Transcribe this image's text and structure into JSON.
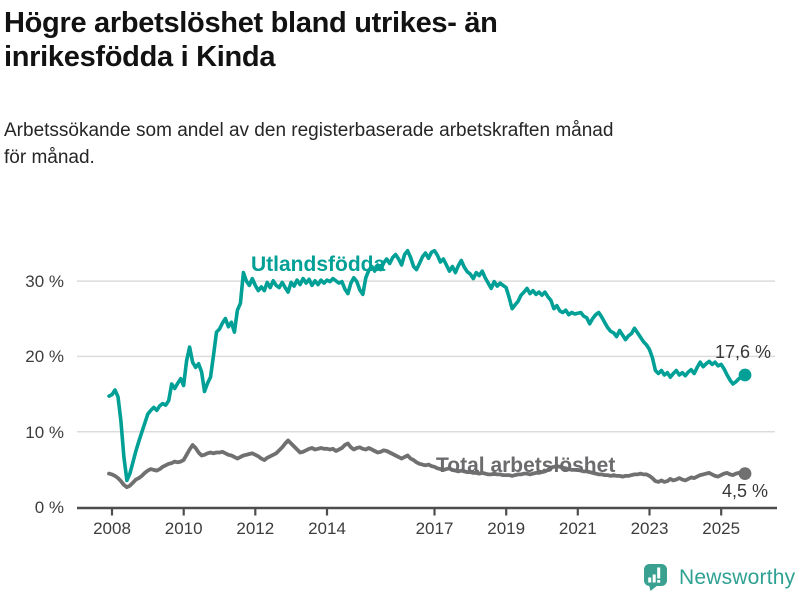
{
  "header": {
    "title": "Högre arbetslöshet bland utrikes- än inrikesfödda i Kinda",
    "title_lines": [
      "Högre arbetslöshet bland utrikes- än",
      "inrikesfödda i Kinda"
    ],
    "subtitle": "Arbetssökande som andel av den registerbaserade arbetskraften månad för månad.",
    "subtitle_lines": [
      "Arbetssökande som andel av den registerbaserade arbetskraften månad",
      "för månad."
    ]
  },
  "chart_data": {
    "type": "line",
    "title": "Högre arbetslöshet bland utrikes- än inrikesfödda i Kinda",
    "subtitle": "Arbetssökande som andel av den registerbaserade arbetskraften månad för månad.",
    "x_start": "2007-12",
    "x_end": "2025-09",
    "x_cadence": "monthly",
    "x_tick_labels": [
      "2008",
      "2010",
      "2012",
      "2014",
      "2017",
      "2019",
      "2021",
      "2023",
      "2025"
    ],
    "y_tick_labels": [
      "0 %",
      "10 %",
      "20 %",
      "30 %"
    ],
    "ylim": [
      0,
      35
    ],
    "grid": "horizontal",
    "legend_position": "inline-labels",
    "axis_color": "#4d4d4d",
    "gridline_color": "#dcdcdc",
    "series": [
      {
        "name": "Total arbetslöshet",
        "color": "#707070",
        "end_label": "4,5 %",
        "end_value": 4.5,
        "values": [
          4.5,
          4.4,
          4.2,
          3.9,
          3.5,
          3.0,
          2.7,
          2.9,
          3.3,
          3.7,
          3.9,
          4.2,
          4.6,
          4.9,
          5.1,
          5.0,
          4.9,
          5.1,
          5.4,
          5.6,
          5.8,
          5.9,
          6.1,
          6.0,
          6.1,
          6.3,
          7.0,
          7.7,
          8.3,
          7.9,
          7.3,
          6.9,
          7.0,
          7.2,
          7.3,
          7.2,
          7.3,
          7.3,
          7.4,
          7.2,
          7.0,
          6.9,
          6.7,
          6.5,
          6.7,
          6.9,
          7.0,
          7.1,
          7.2,
          7.0,
          6.8,
          6.5,
          6.3,
          6.6,
          6.8,
          7.0,
          7.2,
          7.6,
          8.0,
          8.5,
          8.9,
          8.5,
          8.1,
          7.7,
          7.3,
          7.4,
          7.6,
          7.8,
          7.9,
          7.7,
          7.8,
          7.9,
          7.8,
          7.8,
          7.7,
          7.8,
          7.5,
          7.7,
          7.9,
          8.3,
          8.5,
          8.0,
          7.7,
          7.9,
          8.0,
          7.8,
          7.7,
          7.9,
          7.7,
          7.5,
          7.3,
          7.4,
          7.6,
          7.5,
          7.3,
          7.1,
          6.9,
          6.7,
          6.5,
          6.7,
          6.9,
          6.5,
          6.3,
          6.0,
          5.8,
          5.7,
          5.6,
          5.7,
          5.5,
          5.4,
          5.2,
          5.1,
          5.0,
          5.1,
          5.2,
          5.0,
          4.9,
          4.8,
          4.9,
          4.8,
          4.7,
          4.7,
          4.6,
          4.6,
          4.5,
          4.6,
          4.5,
          4.4,
          4.4,
          4.5,
          4.4,
          4.4,
          4.3,
          4.3,
          4.3,
          4.2,
          4.3,
          4.4,
          4.4,
          4.5,
          4.5,
          4.4,
          4.5,
          4.6,
          4.6,
          4.7,
          4.8,
          5.0,
          5.3,
          5.4,
          5.5,
          5.4,
          5.3,
          5.2,
          5.1,
          5.0,
          5.0,
          5.0,
          4.9,
          4.8,
          4.8,
          4.7,
          4.6,
          4.5,
          4.4,
          4.4,
          4.3,
          4.3,
          4.2,
          4.3,
          4.2,
          4.2,
          4.1,
          4.2,
          4.2,
          4.3,
          4.4,
          4.4,
          4.5,
          4.4,
          4.4,
          4.2,
          3.9,
          3.5,
          3.4,
          3.6,
          3.4,
          3.5,
          3.8,
          3.6,
          3.7,
          3.9,
          3.7,
          3.6,
          3.8,
          4.0,
          3.9,
          4.1,
          4.3,
          4.4,
          4.5,
          4.6,
          4.4,
          4.2,
          4.1,
          4.3,
          4.5,
          4.6,
          4.4,
          4.3,
          4.5,
          4.6,
          4.6,
          4.5
        ]
      },
      {
        "name": "Utlandsfödda",
        "color": "#00a096",
        "end_label": "17,6 %",
        "end_value": 17.6,
        "values": [
          14.8,
          15.0,
          15.6,
          14.7,
          11.5,
          6.7,
          3.6,
          4.5,
          6.0,
          7.5,
          8.8,
          10.0,
          11.2,
          12.4,
          12.9,
          13.3,
          12.9,
          13.5,
          13.8,
          13.6,
          14.2,
          16.4,
          15.8,
          16.5,
          17.1,
          16.2,
          19.5,
          21.3,
          19.3,
          18.6,
          19.1,
          18.0,
          15.4,
          16.5,
          17.3,
          20.2,
          23.3,
          23.7,
          24.5,
          25.1,
          24.0,
          24.6,
          23.3,
          26.2,
          27.1,
          31.2,
          30.1,
          29.5,
          30.4,
          29.5,
          28.8,
          29.3,
          28.8,
          29.9,
          29.2,
          30.1,
          29.5,
          29.2,
          29.9,
          29.2,
          28.6,
          29.9,
          29.4,
          30.2,
          29.6,
          30.4,
          29.8,
          30.3,
          29.5,
          30.1,
          29.6,
          30.2,
          29.8,
          30.2,
          30.0,
          30.4,
          30.1,
          29.8,
          30.0,
          29.0,
          28.4,
          29.8,
          30.5,
          30.0,
          28.9,
          28.3,
          30.5,
          31.5,
          32.0,
          31.4,
          32.2,
          31.6,
          32.5,
          33.0,
          32.4,
          33.2,
          33.6,
          33.0,
          32.2,
          33.6,
          34.1,
          33.2,
          32.0,
          31.6,
          32.4,
          33.3,
          33.8,
          33.1,
          33.9,
          34.1,
          33.5,
          32.6,
          33.0,
          32.2,
          31.4,
          32.0,
          31.2,
          32.1,
          32.8,
          31.9,
          31.3,
          31.0,
          30.4,
          31.2,
          30.8,
          31.4,
          30.5,
          29.8,
          29.1,
          30.0,
          29.4,
          29.8,
          29.5,
          29.2,
          27.9,
          26.4,
          26.9,
          27.4,
          28.2,
          28.6,
          29.1,
          28.4,
          28.8,
          28.3,
          28.6,
          28.2,
          28.6,
          28.0,
          27.5,
          26.4,
          26.8,
          26.1,
          25.9,
          26.2,
          25.6,
          25.9,
          25.7,
          25.8,
          25.9,
          25.4,
          25.2,
          24.4,
          25.1,
          25.6,
          25.9,
          25.3,
          24.6,
          23.9,
          23.4,
          23.2,
          22.7,
          23.5,
          22.9,
          22.3,
          22.8,
          23.1,
          23.8,
          23.2,
          22.6,
          22.0,
          21.6,
          21.0,
          19.9,
          18.2,
          17.8,
          18.2,
          17.6,
          17.9,
          17.3,
          17.8,
          18.2,
          17.6,
          17.9,
          17.5,
          18.0,
          18.3,
          17.8,
          18.6,
          19.3,
          18.7,
          19.1,
          19.4,
          19.0,
          19.3,
          18.8,
          19.0,
          18.4,
          17.6,
          16.9,
          16.4,
          16.7,
          17.1,
          17.4,
          17.6
        ]
      }
    ]
  },
  "branding": {
    "logo_text": "Newsworthy",
    "logo_icon": "bar-chart-speech-bubble-icon",
    "logo_color": "#2fa193"
  }
}
